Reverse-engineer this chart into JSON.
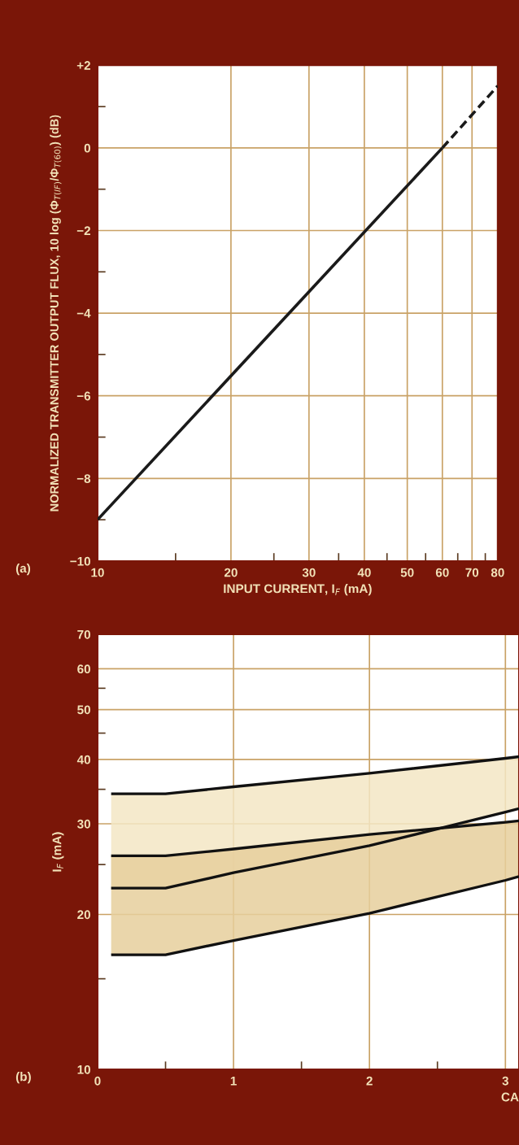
{
  "chart_data": [
    {
      "type": "line",
      "xlabel": "INPUT CURRENT, I$_{F}$ (mA)",
      "ylabel": "NORMALIZED TRANSMITTER OUTPUT FLUX, 10 log (Φ$_{T(IF)}$/Φ$_{T(60)}$) (dB)",
      "log": "x",
      "grid": true,
      "xlim": [
        10,
        80
      ],
      "xticks": [
        10,
        {
          "value": 15,
          "label": null
        },
        20,
        {
          "value": 25,
          "label": null
        },
        30,
        {
          "value": 35,
          "label": null
        },
        40,
        {
          "value": 45,
          "label": null
        },
        50,
        {
          "value": 55,
          "label": null
        },
        60,
        {
          "value": 65,
          "label": null
        },
        70,
        {
          "value": 75,
          "label": null
        },
        80
      ],
      "ylim": [
        -10,
        2
      ],
      "yticks": [
        {
          "value": -10,
          "label": "−10"
        },
        {
          "value": -9,
          "label": null
        },
        {
          "value": -8,
          "label": "−8"
        },
        {
          "value": -7,
          "label": null
        },
        {
          "value": -6,
          "label": "−6"
        },
        {
          "value": -5,
          "label": null
        },
        {
          "value": -4,
          "label": "−4"
        },
        {
          "value": -3,
          "label": null
        },
        {
          "value": -2,
          "label": "−2"
        },
        {
          "value": -1,
          "label": null
        },
        0,
        {
          "value": 1,
          "label": null
        },
        {
          "value": 2,
          "label": "+2"
        }
      ],
      "series": [
        {
          "color": "#1a1a1a",
          "line_style": "solid",
          "x": [
            10,
            60
          ],
          "values": [
            -9,
            0
          ]
        },
        {
          "color": "#1a1a1a",
          "line_style": "dashed",
          "x": [
            60,
            80
          ],
          "values": [
            0,
            1.5
          ]
        }
      ],
      "annotations": [
        "(a)"
      ]
    },
    {
      "type": "line",
      "xlabel": "CA",
      "ylabel": "I$_{F}$ (mA)",
      "log": "y",
      "grid": true,
      "xlim": [
        0,
        3.1
      ],
      "xticks": [
        0,
        {
          "value": 0.5,
          "label": null
        },
        1,
        {
          "value": 1.5,
          "label": null
        },
        2,
        {
          "value": 2.5,
          "label": null
        },
        3
      ],
      "ylim": [
        10,
        70
      ],
      "yticks": [
        10,
        {
          "value": 15,
          "label": null
        },
        20,
        {
          "value": 25,
          "label": null
        },
        30,
        {
          "value": 35,
          "label": null
        },
        40,
        {
          "value": 45,
          "label": null
        },
        50,
        {
          "value": 55,
          "label": null
        },
        60,
        70
      ],
      "series": [
        {
          "color": "#111111",
          "x": [
            0.1,
            0.5,
            1,
            2,
            3,
            3.1
          ],
          "values": [
            34.3,
            34.3,
            35.4,
            37.6,
            40.2,
            40.5
          ],
          "upper": [
            34.3,
            34.3,
            35.4,
            37.6,
            40.2,
            40.5
          ],
          "lower": [
            22.5,
            22.5,
            24.1,
            27.2,
            31.6,
            32.1
          ]
        },
        {
          "color": "#111111",
          "x": [
            0.1,
            0.5,
            1,
            2,
            3,
            3.1
          ],
          "values": [
            26.0,
            26.0,
            26.8,
            28.6,
            30.2,
            30.4
          ],
          "upper": [
            26.0,
            26.0,
            26.8,
            28.6,
            30.2,
            30.4
          ],
          "lower": [
            16.7,
            16.7,
            17.8,
            20.1,
            23.3,
            23.7
          ]
        },
        {
          "type": "line",
          "color": "#111111",
          "x": [
            0.1,
            0.5,
            1,
            2,
            3,
            3.1
          ],
          "values": [
            22.5,
            22.5,
            24.1,
            27.2,
            31.6,
            32.1
          ]
        },
        {
          "type": "line",
          "color": "#111111",
          "x": [
            0.1,
            0.5,
            1,
            2,
            3,
            3.1
          ],
          "values": [
            16.7,
            16.7,
            17.8,
            20.1,
            23.3,
            23.7
          ]
        }
      ],
      "annotations": [
        "(b)"
      ]
    }
  ]
}
